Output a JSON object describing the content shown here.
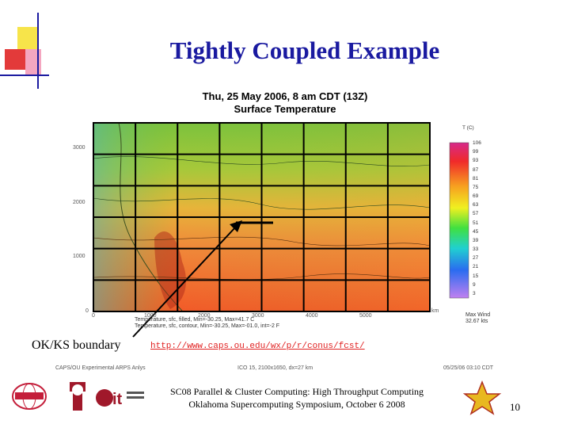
{
  "slide": {
    "title": "Tightly Coupled Example",
    "page_number": "10"
  },
  "map": {
    "title_line1": "Thu, 25 May 2006, 8 am CDT (13Z)",
    "title_line2": "Surface Temperature",
    "y_ticks": [
      "3000",
      "2000",
      "1000",
      "0"
    ],
    "x_ticks": [
      "0",
      "1000",
      "2000",
      "3000",
      "4000",
      "5000"
    ],
    "x_unit": "km",
    "colorbar_header": "T (C)",
    "colorbar_values": [
      "106",
      "99",
      "93",
      "87",
      "81",
      "75",
      "69",
      "63",
      "57",
      "51",
      "45",
      "39",
      "33",
      "27",
      "21",
      "15",
      "9",
      "3"
    ],
    "caption_line1": "Temperature, sfc, filled, Min=-30.25, Max=41.7 C",
    "caption_line2": "Temperature, sfc, contour, Min=-30.25, Max=-01.0, int=-2 F",
    "max_wind_label": "Max Wind",
    "max_wind_value": "32.67 kts",
    "grid_rows": 6,
    "grid_cols": 8
  },
  "annotation": {
    "boundary_label": "OK/KS boundary",
    "url": "http://www.caps.ou.edu/wx/p/r/conus/fcst/"
  },
  "source_line": {
    "left": "CAPS/OU Experimental ARPS Anlys",
    "middle": "ICO 15, 2100x1650, dx=27 km",
    "right": "05/25/06 03:10 CDT"
  },
  "footer": {
    "line1": "SC08 Parallel & Cluster Computing: High Throughput Computing",
    "line2": "Oklahoma Supercomputing Symposium, October 6 2008"
  },
  "colors": {
    "title": "#1a1aa0",
    "url": "#e02020",
    "grid": "#000000",
    "deco_yellow": "#f7e44a",
    "deco_red": "#e33a3a",
    "deco_pink": "#f4a6c0",
    "deco_line": "#1a1aa0"
  },
  "logos": [
    "oscer-logo",
    "ou-logo",
    "it-logo",
    "sc08-star-logo"
  ]
}
